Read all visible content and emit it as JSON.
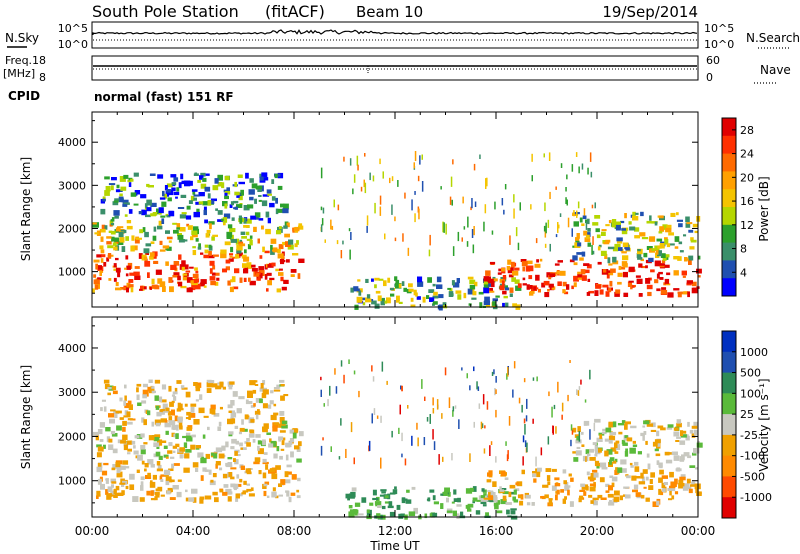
{
  "header": {
    "station": "South Pole Station",
    "mode": "(fitACF)",
    "beam": "Beam 10",
    "date": "19/Sep/2014"
  },
  "panel_labels": {
    "nsky": "N.Sky",
    "nsearch": "N.Search",
    "freq_line1": "Freq.",
    "freq_line2": "[MHz]",
    "nave": "Nave",
    "cpid": "CPID",
    "cpid_value": "normal (fast) 151 RF",
    "noise_tick_top": "10^5",
    "noise_tick_bottom": "10^0",
    "freq_tick_top": "18",
    "freq_tick_bottom": "8",
    "nave_tick_top": "60",
    "nave_tick_bottom": "0"
  },
  "chart_data": [
    {
      "type": "heatmap",
      "name": "power",
      "ylabel": "Slant Range [km]",
      "y_ticks": [
        "1000",
        "2000",
        "3000",
        "4000"
      ],
      "x_ticks": [
        "00:00",
        "04:00",
        "08:00",
        "12:00",
        "16:00",
        "20:00",
        "00:00"
      ],
      "xlim_hours": [
        0,
        24
      ],
      "ylim_km": [
        180,
        4700
      ],
      "colorbar": {
        "label": "Power [dB]",
        "ticks": [
          "4",
          "8",
          "12",
          "16",
          "20",
          "24",
          "28"
        ],
        "range": [
          0,
          30
        ],
        "colors": [
          "#0000ff",
          "#1f4fb0",
          "#3a8f6a",
          "#2ca02c",
          "#b5d600",
          "#f4c400",
          "#ffa000",
          "#ff6a00",
          "#ff3000",
          "#e00000"
        ]
      },
      "echo_regions": [
        {
          "t": [
            0.0,
            8.2
          ],
          "r": [
            600,
            1500
          ],
          "level": 24
        },
        {
          "t": [
            0.0,
            8.2
          ],
          "r": [
            1500,
            2200
          ],
          "level": 14
        },
        {
          "t": [
            0.3,
            7.6
          ],
          "r": [
            2200,
            3300
          ],
          "level": 6
        },
        {
          "t": [
            10.0,
            16.8
          ],
          "r": [
            200,
            900
          ],
          "level": 10
        },
        {
          "t": [
            15.5,
            24.0
          ],
          "r": [
            500,
            1300
          ],
          "level": 26
        },
        {
          "t": [
            19.0,
            24.0
          ],
          "r": [
            1300,
            2400
          ],
          "level": 12
        }
      ]
    },
    {
      "type": "heatmap",
      "name": "velocity",
      "ylabel": "Slant Range [km]",
      "y_ticks": [
        "1000",
        "2000",
        "3000",
        "4000"
      ],
      "x_ticks": [
        "00:00",
        "04:00",
        "08:00",
        "12:00",
        "16:00",
        "20:00",
        "00:00"
      ],
      "xlabel": "Time UT",
      "xlim_hours": [
        0,
        24
      ],
      "ylim_km": [
        180,
        4700
      ],
      "colorbar": {
        "label": "Velocity [m s⁻¹]",
        "ticks": [
          "1000",
          "500",
          "100",
          "25",
          "-25",
          "-100",
          "-500",
          "-1000"
        ],
        "range": [
          -1000,
          1000
        ],
        "colors": [
          "#e00000",
          "#ff4a00",
          "#ff8a00",
          "#f0a000",
          "#c8c8c0",
          "#5aba3a",
          "#2e8b57",
          "#1f4fb0",
          "#0030c0"
        ]
      },
      "echo_regions": [
        {
          "t": [
            0.0,
            8.2
          ],
          "r": [
            600,
            1500
          ],
          "level": -150
        },
        {
          "t": [
            0.0,
            8.2
          ],
          "r": [
            1500,
            2200
          ],
          "level": -10
        },
        {
          "t": [
            0.3,
            7.6
          ],
          "r": [
            2200,
            3300
          ],
          "level": -120
        },
        {
          "t": [
            10.0,
            16.8
          ],
          "r": [
            200,
            900
          ],
          "level": 300
        },
        {
          "t": [
            15.5,
            24.0
          ],
          "r": [
            500,
            1300
          ],
          "level": -200
        },
        {
          "t": [
            19.0,
            24.0
          ],
          "r": [
            1300,
            2400
          ],
          "level": -10
        }
      ]
    }
  ]
}
